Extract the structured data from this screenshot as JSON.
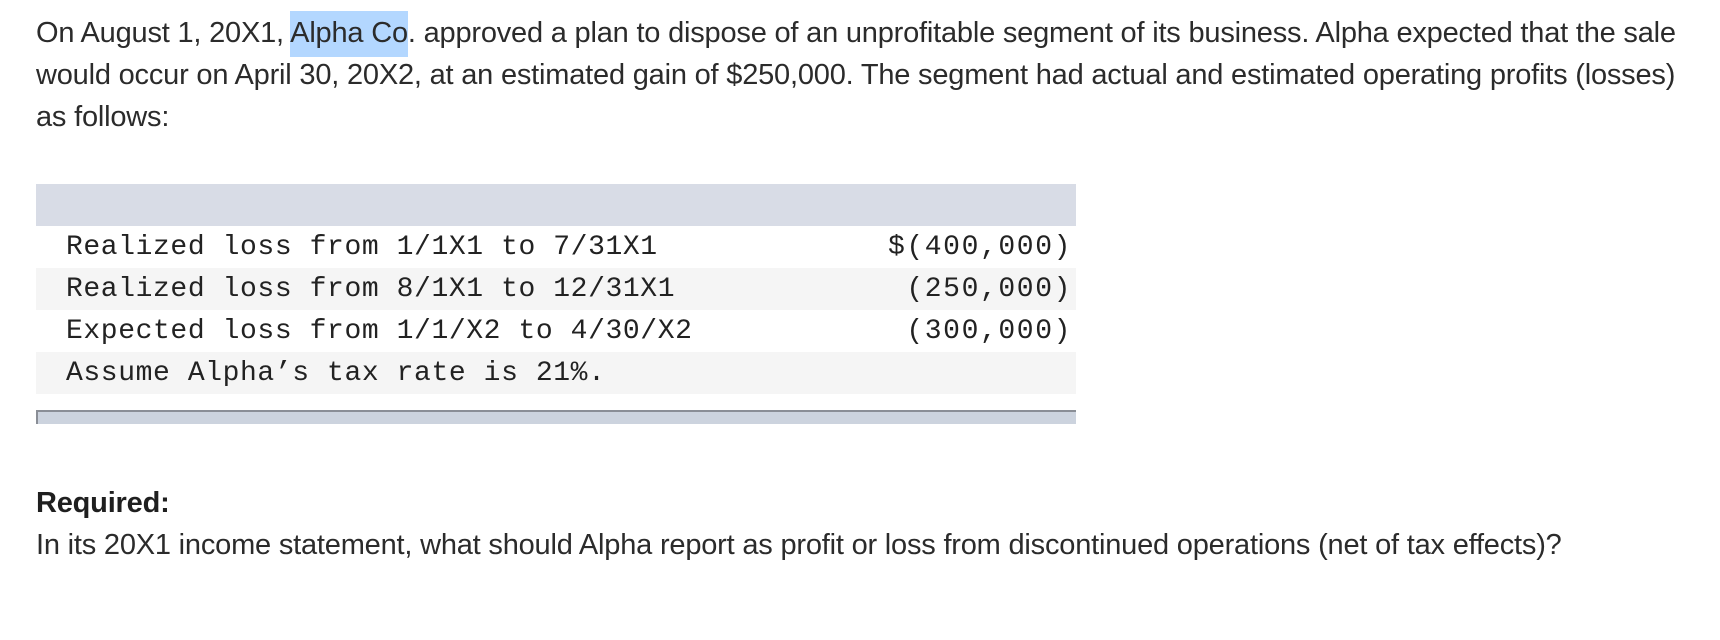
{
  "intro": {
    "before_highlight": "On August 1, 20X1, ",
    "highlighted": "Alpha Co",
    "after_highlight": ". approved a plan to dispose of an unprofitable segment of its business. Alpha expected that the sale would occur on April 30, 20X2, at an estimated gain of $250,000. The segment had actual and estimated operating profits (losses) as follows:"
  },
  "table": {
    "rows": [
      {
        "label": "Realized loss from 1/1X1 to 7/31X1",
        "value": "$(400,000)"
      },
      {
        "label": "Realized loss from 8/1X1 to 12/31X1",
        "value": "(250,000)"
      },
      {
        "label": "Expected loss from 1/1/X2 to 4/30/X2",
        "value": "(300,000)"
      },
      {
        "label": "Assume Alpha’s tax rate is 21%.",
        "value": ""
      }
    ]
  },
  "required": {
    "heading": "Required:",
    "question": "In its 20X1 income statement, what should Alpha report as profit or loss from discontinued operations (net of tax effects)?"
  },
  "colors": {
    "highlight": "#b3d7ff",
    "table_header": "#d8dce6",
    "row_alt": "#f5f5f5",
    "footer_fill": "#ccd3de",
    "footer_border": "#8a8e96"
  }
}
